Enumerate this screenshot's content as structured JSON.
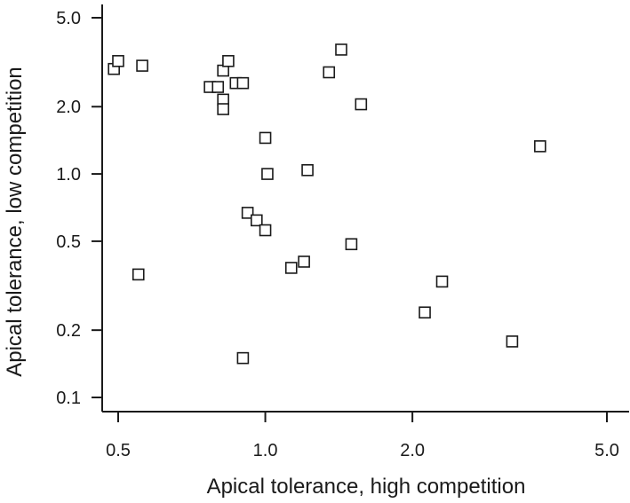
{
  "chart_data": {
    "type": "scatter",
    "title": "",
    "xlabel": "Apical tolerance, high competition",
    "ylabel": "Apical tolerance, low competition",
    "xscale": "log",
    "yscale": "log",
    "xlim": [
      0.465,
      5.2
    ],
    "ylim": [
      0.08,
      5.5
    ],
    "xticks": [
      {
        "value": 0.5,
        "label": "0.5"
      },
      {
        "value": 1.0,
        "label": "1.0"
      },
      {
        "value": 2.0,
        "label": "2.0"
      },
      {
        "value": 5.0,
        "label": "5.0"
      }
    ],
    "yticks": [
      {
        "value": 0.1,
        "label": "0.1"
      },
      {
        "value": 0.2,
        "label": "0.2"
      },
      {
        "value": 0.5,
        "label": "0.5"
      },
      {
        "value": 1.0,
        "label": "1.0"
      },
      {
        "value": 2.0,
        "label": "2.0"
      },
      {
        "value": 5.0,
        "label": "5.0"
      }
    ],
    "grid": false,
    "marker": "open-square",
    "points": [
      {
        "x": 0.49,
        "y": 2.95
      },
      {
        "x": 0.5,
        "y": 3.2
      },
      {
        "x": 0.56,
        "y": 3.05
      },
      {
        "x": 0.55,
        "y": 0.355
      },
      {
        "x": 0.77,
        "y": 2.45
      },
      {
        "x": 0.8,
        "y": 2.45
      },
      {
        "x": 0.82,
        "y": 2.9
      },
      {
        "x": 0.84,
        "y": 3.2
      },
      {
        "x": 0.82,
        "y": 2.15
      },
      {
        "x": 0.82,
        "y": 1.95
      },
      {
        "x": 0.87,
        "y": 2.55
      },
      {
        "x": 0.9,
        "y": 2.55
      },
      {
        "x": 0.92,
        "y": 0.67
      },
      {
        "x": 0.96,
        "y": 0.62
      },
      {
        "x": 1.0,
        "y": 0.56
      },
      {
        "x": 1.0,
        "y": 1.45
      },
      {
        "x": 1.01,
        "y": 1.0
      },
      {
        "x": 1.13,
        "y": 0.38
      },
      {
        "x": 1.2,
        "y": 0.405
      },
      {
        "x": 1.22,
        "y": 1.04
      },
      {
        "x": 1.35,
        "y": 2.85
      },
      {
        "x": 1.43,
        "y": 3.6
      },
      {
        "x": 1.5,
        "y": 0.485
      },
      {
        "x": 1.57,
        "y": 2.05
      },
      {
        "x": 0.9,
        "y": 0.15
      },
      {
        "x": 2.12,
        "y": 0.24
      },
      {
        "x": 2.3,
        "y": 0.33
      },
      {
        "x": 3.2,
        "y": 0.178
      },
      {
        "x": 3.65,
        "y": 1.33
      }
    ]
  }
}
